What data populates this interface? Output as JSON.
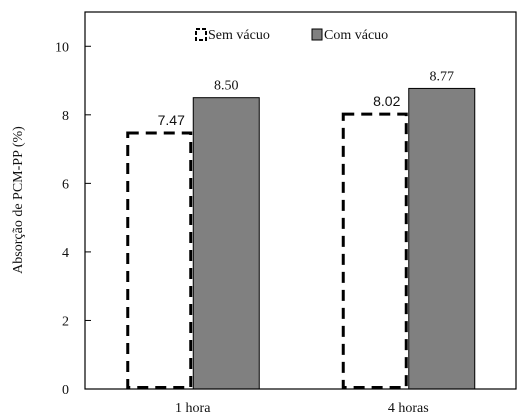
{
  "chart_data": {
    "type": "bar",
    "categories": [
      "1 hora",
      "4 horas"
    ],
    "series": [
      {
        "name": "Sem vácuo",
        "values": [
          7.47,
          8.02
        ],
        "value_labels": [
          "7.47",
          "8.02"
        ],
        "style": "dashed-outline",
        "color": "#000000"
      },
      {
        "name": "Com vácuo",
        "values": [
          8.5,
          8.77
        ],
        "value_labels": [
          "8.50",
          "8.77"
        ],
        "style": "filled",
        "color": "#808080"
      }
    ],
    "ylabel": "Absorção de PCM-PP (%)",
    "xlabel": "",
    "ylim": [
      0,
      11
    ],
    "yticks": [
      0,
      2,
      4,
      6,
      8,
      10
    ],
    "ytick_labels": [
      "0",
      "2",
      "4",
      "6",
      "8",
      "10"
    ],
    "legend_position": "top-center",
    "grid": false
  }
}
